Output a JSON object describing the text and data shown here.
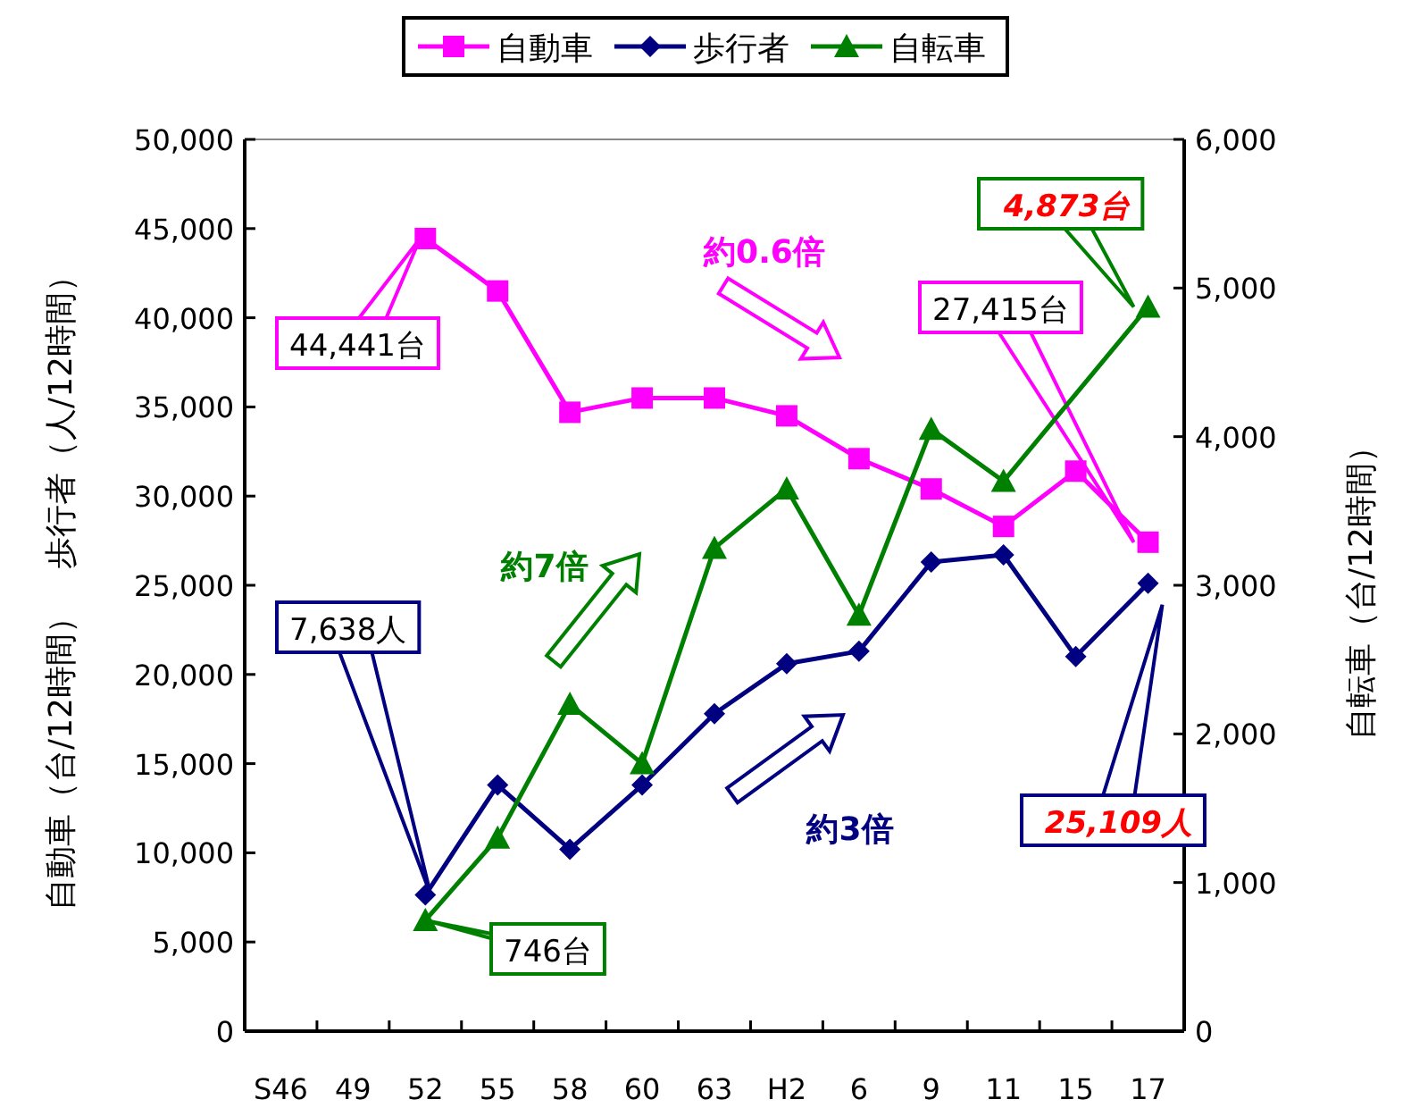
{
  "chart_data": {
    "type": "line",
    "categories": [
      "S46",
      "49",
      "52",
      "55",
      "58",
      "60",
      "63",
      "H2",
      "6",
      "9",
      "11",
      "15",
      "17"
    ],
    "ylabel": "自動車（台/12時間）　歩行者（人/12時間）",
    "y2label": "自転車（台/12時間）",
    "ylim": [
      0,
      50000
    ],
    "yticks": [
      0,
      {
        "value": 5000,
        "label": "5,000"
      },
      {
        "value": 10000,
        "label": "10,000"
      },
      {
        "value": 15000,
        "label": "15,000"
      },
      {
        "value": 20000,
        "label": "20,000"
      },
      {
        "value": 25000,
        "label": "25,000"
      },
      {
        "value": 30000,
        "label": "30,000"
      },
      {
        "value": 35000,
        "label": "35,000"
      },
      {
        "value": 40000,
        "label": "40,000"
      },
      {
        "value": 45000,
        "label": "45,000"
      },
      {
        "value": 50000,
        "label": "50,000"
      }
    ],
    "y2lim": [
      0,
      6000
    ],
    "y2ticks": [
      0,
      {
        "value": 1000,
        "label": "1,000"
      },
      {
        "value": 2000,
        "label": "2,000"
      },
      {
        "value": 3000,
        "label": "3,000"
      },
      {
        "value": 4000,
        "label": "4,000"
      },
      {
        "value": 5000,
        "label": "5,000"
      },
      {
        "value": 6000,
        "label": "6,000"
      }
    ],
    "legend": "top",
    "grid": false,
    "series": [
      {
        "name": "自動車",
        "color": "#ff00ff",
        "marker": "square",
        "values": [
          null,
          null,
          44441,
          41500,
          34700,
          35500,
          35500,
          34500,
          32100,
          30400,
          28300,
          31400,
          27415
        ]
      },
      {
        "name": "歩行者",
        "color": "#000080",
        "marker": "diamond",
        "values": [
          null,
          null,
          7638,
          13800,
          10200,
          13800,
          17800,
          20600,
          21300,
          26300,
          26700,
          21000,
          25109
        ]
      },
      {
        "name": "自転車",
        "color": "#008000",
        "marker": "triangle",
        "axis": "y2",
        "values": [
          null,
          null,
          746,
          1300,
          2200,
          1800,
          3250,
          3650,
          2800,
          4050,
          3700,
          null,
          4873
        ]
      }
    ],
    "annotations": [
      "44,441台",
      "27,415台",
      "4,873台",
      "7,638人",
      "25,109人",
      "746台",
      "約0.6倍",
      "約7倍",
      "約3倍"
    ]
  }
}
